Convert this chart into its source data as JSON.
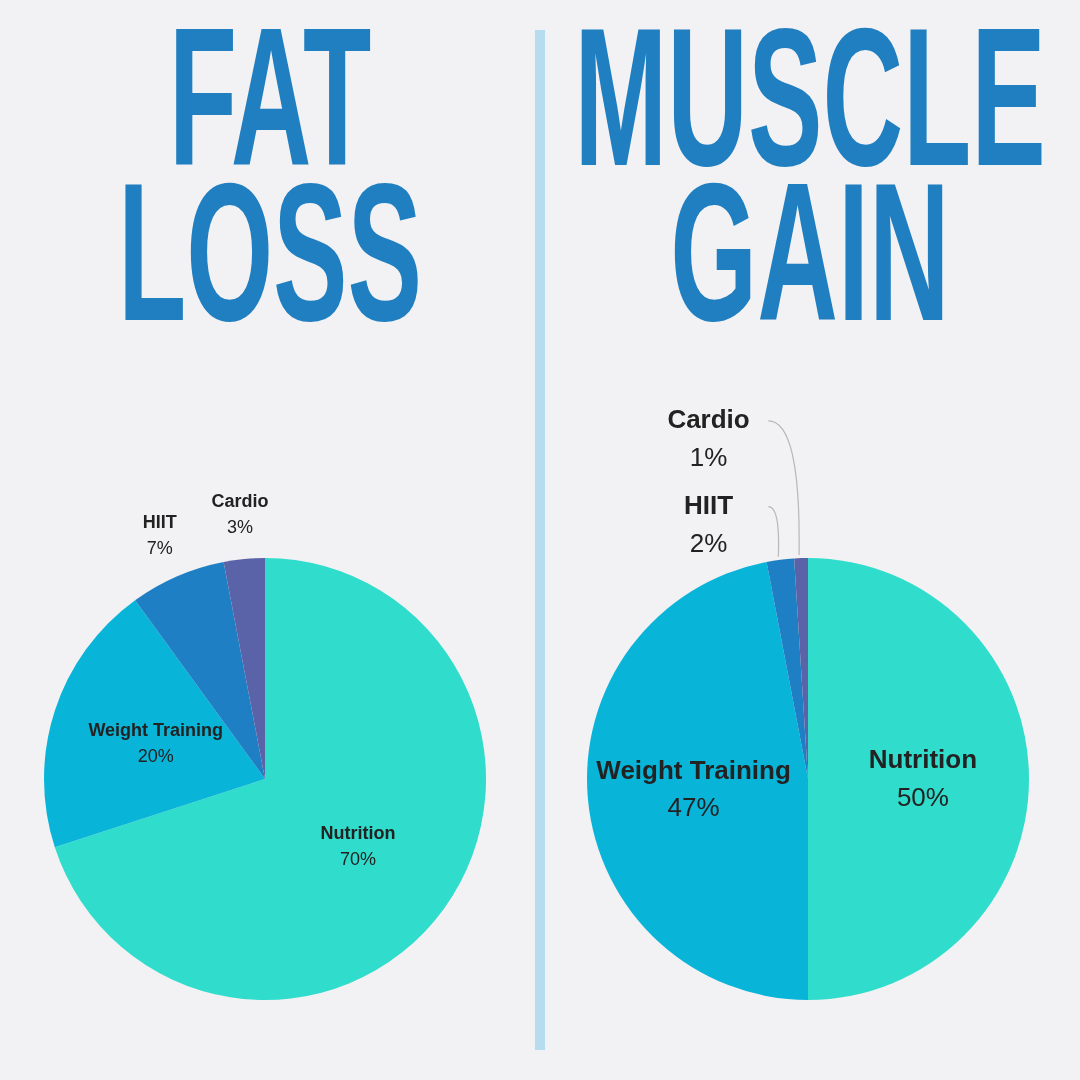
{
  "chart_data": [
    {
      "type": "pie",
      "title": "FAT LOSS",
      "categories": [
        "Nutrition",
        "Weight Training",
        "HIIT",
        "Cardio"
      ],
      "values": [
        70,
        20,
        7,
        3
      ],
      "colors": [
        "#30dccb",
        "#08b5d9",
        "#1f7fc4",
        "#5b63a8"
      ],
      "value_labels": [
        "70%",
        "20%",
        "7%",
        "3%"
      ],
      "legend": false
    },
    {
      "type": "pie",
      "title": "MUSCLE GAIN",
      "categories": [
        "Nutrition",
        "Weight Training",
        "HIIT",
        "Cardio"
      ],
      "values": [
        50,
        47,
        2,
        1
      ],
      "colors": [
        "#30dccb",
        "#08b5d9",
        "#1f7fc4",
        "#5b63a8"
      ],
      "value_labels": [
        "50%",
        "47%",
        "2%",
        "1%"
      ],
      "legend": false
    }
  ]
}
